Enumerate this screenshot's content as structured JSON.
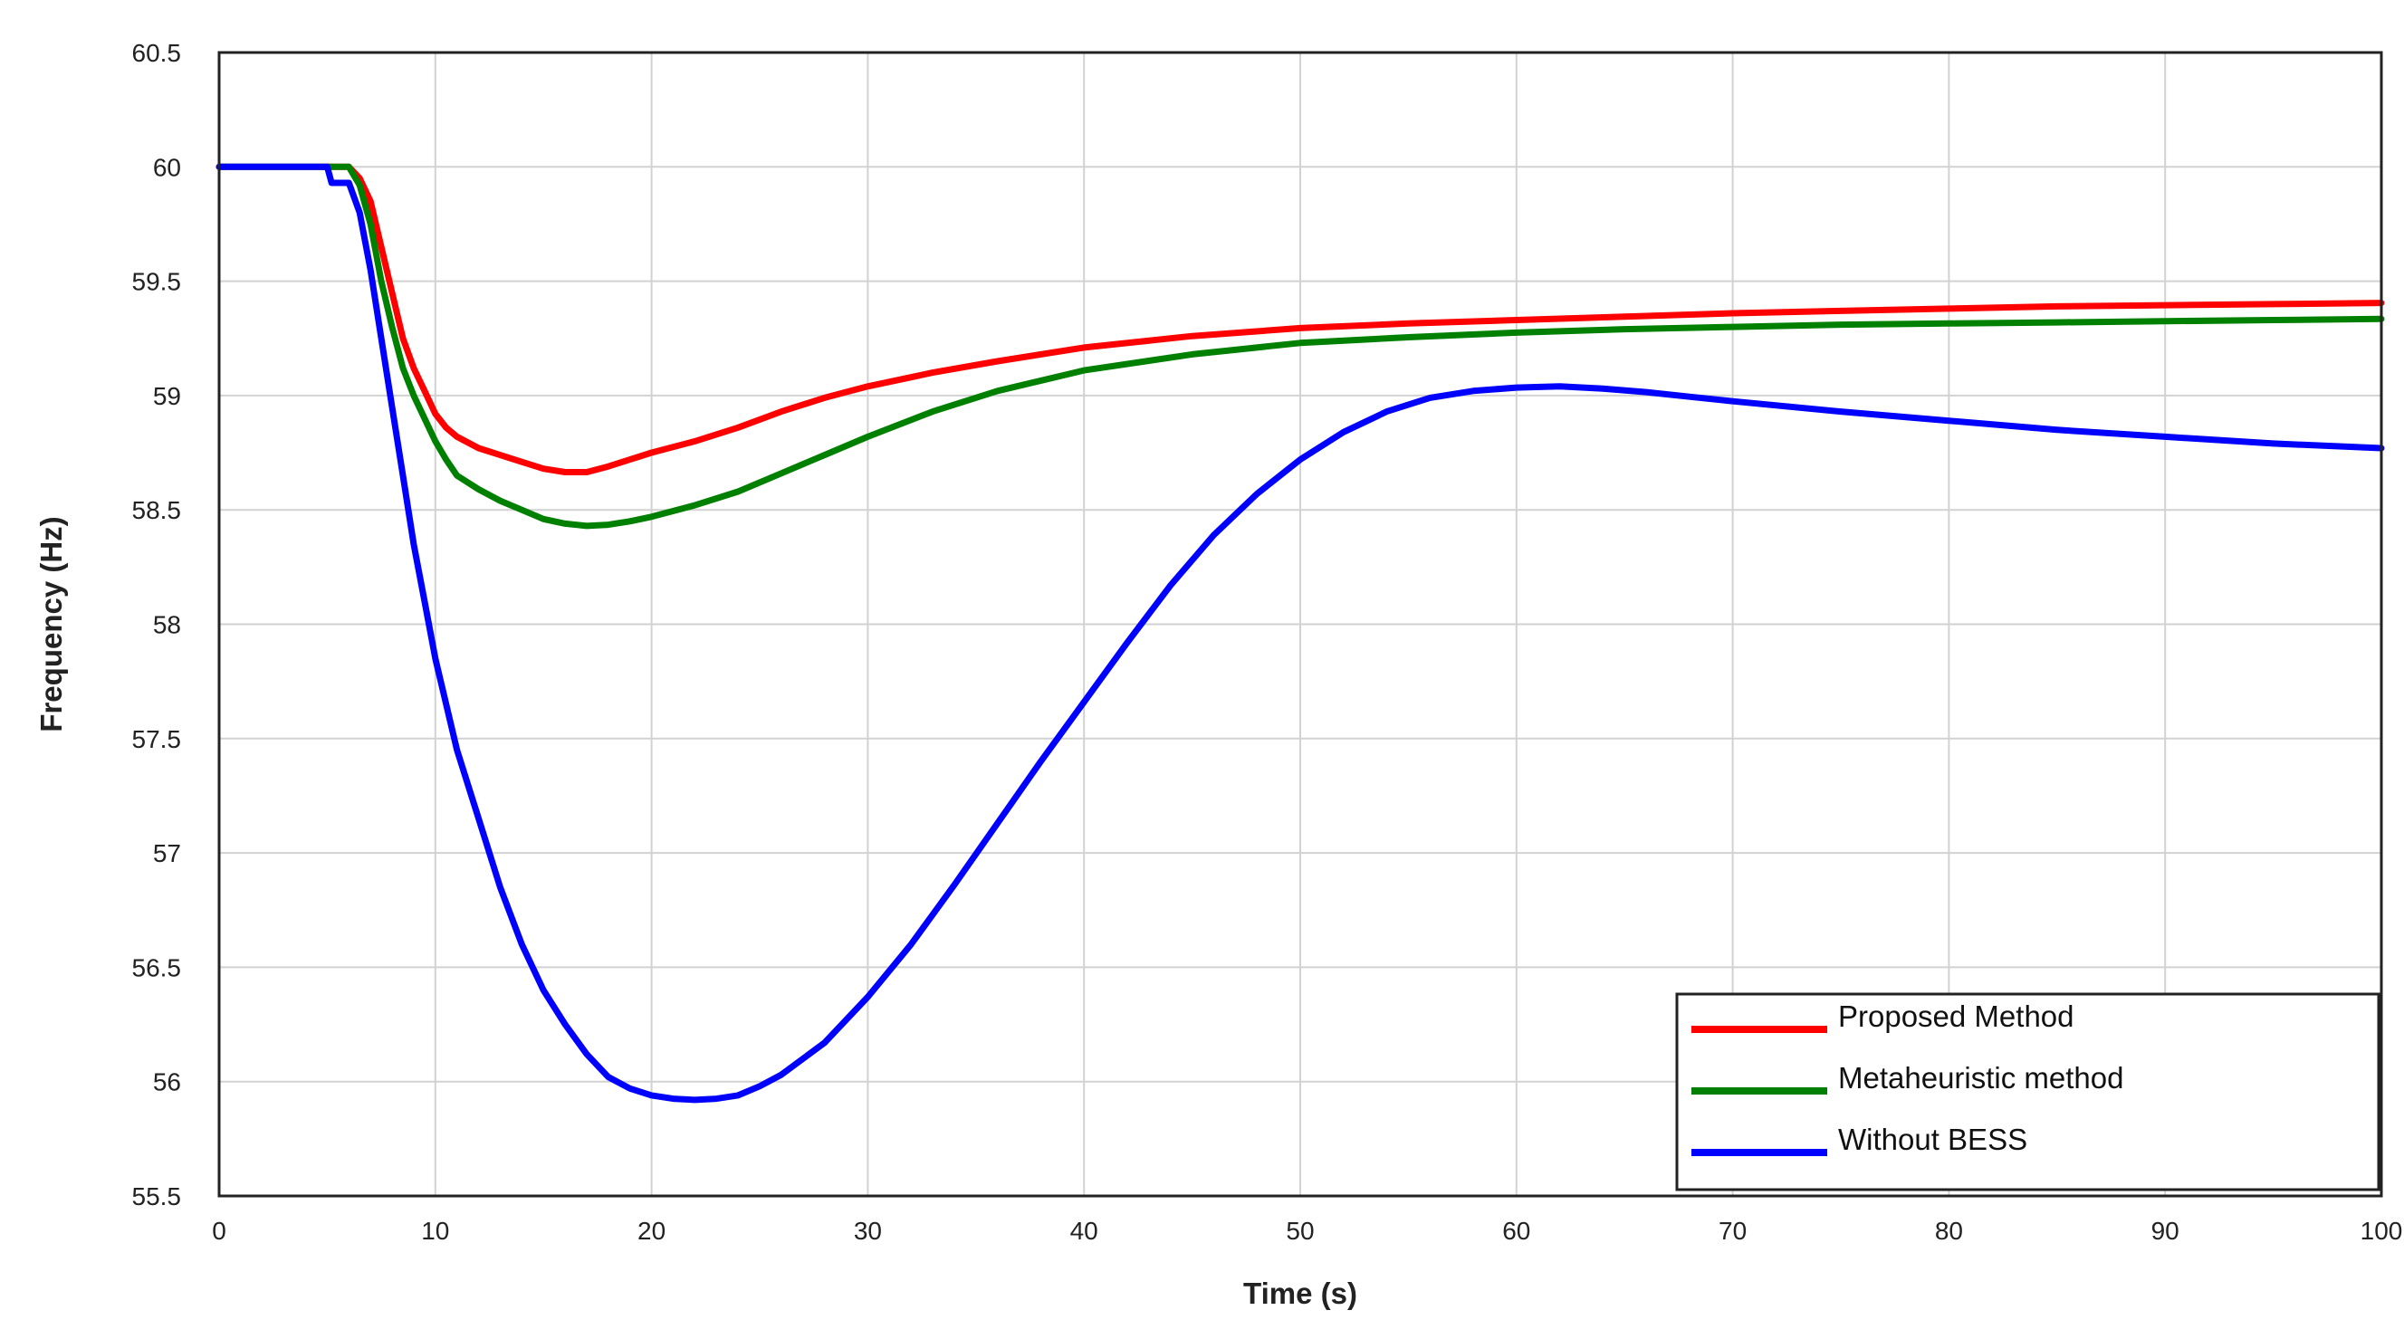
{
  "chart_data": {
    "type": "line",
    "title": "",
    "xlabel": "Time (s)",
    "ylabel": "Frequency (Hz)",
    "xlim": [
      0,
      100
    ],
    "ylim": [
      55.5,
      60.5
    ],
    "xticks": [
      0,
      10,
      20,
      30,
      40,
      50,
      60,
      70,
      80,
      90,
      100
    ],
    "yticks": [
      55.5,
      56,
      56.5,
      57,
      57.5,
      58,
      58.5,
      59,
      59.5,
      60,
      60.5
    ],
    "grid": true,
    "legend_position": "bottom-right",
    "series": [
      {
        "name": "Proposed Method",
        "color": "#ff0000",
        "points": [
          [
            0,
            60
          ],
          [
            5,
            60
          ],
          [
            6,
            60
          ],
          [
            6.5,
            59.95
          ],
          [
            7,
            59.85
          ],
          [
            7.5,
            59.65
          ],
          [
            8,
            59.45
          ],
          [
            8.5,
            59.25
          ],
          [
            9,
            59.12
          ],
          [
            9.5,
            59.02
          ],
          [
            10,
            58.92
          ],
          [
            10.5,
            58.86
          ],
          [
            11,
            58.82
          ],
          [
            12,
            58.77
          ],
          [
            13,
            58.74
          ],
          [
            14,
            58.71
          ],
          [
            15,
            58.68
          ],
          [
            16,
            58.665
          ],
          [
            17,
            58.665
          ],
          [
            18,
            58.69
          ],
          [
            19,
            58.72
          ],
          [
            20,
            58.75
          ],
          [
            22,
            58.8
          ],
          [
            24,
            58.86
          ],
          [
            26,
            58.93
          ],
          [
            28,
            58.99
          ],
          [
            30,
            59.04
          ],
          [
            33,
            59.1
          ],
          [
            36,
            59.15
          ],
          [
            40,
            59.21
          ],
          [
            45,
            59.26
          ],
          [
            50,
            59.295
          ],
          [
            55,
            59.315
          ],
          [
            60,
            59.33
          ],
          [
            65,
            59.345
          ],
          [
            70,
            59.36
          ],
          [
            75,
            59.37
          ],
          [
            80,
            59.38
          ],
          [
            85,
            59.39
          ],
          [
            90,
            59.395
          ],
          [
            95,
            59.4
          ],
          [
            100,
            59.405
          ]
        ]
      },
      {
        "name": "Metaheuristic method",
        "color": "#008000",
        "points": [
          [
            0,
            60
          ],
          [
            5,
            60
          ],
          [
            6,
            60
          ],
          [
            6.5,
            59.92
          ],
          [
            7,
            59.75
          ],
          [
            7.5,
            59.5
          ],
          [
            8,
            59.3
          ],
          [
            8.5,
            59.12
          ],
          [
            9,
            59.0
          ],
          [
            9.5,
            58.9
          ],
          [
            10,
            58.8
          ],
          [
            10.5,
            58.72
          ],
          [
            11,
            58.65
          ],
          [
            12,
            58.59
          ],
          [
            13,
            58.54
          ],
          [
            14,
            58.5
          ],
          [
            15,
            58.46
          ],
          [
            16,
            58.44
          ],
          [
            17,
            58.43
          ],
          [
            18,
            58.435
          ],
          [
            19,
            58.45
          ],
          [
            20,
            58.47
          ],
          [
            22,
            58.52
          ],
          [
            24,
            58.58
          ],
          [
            26,
            58.66
          ],
          [
            28,
            58.74
          ],
          [
            30,
            58.82
          ],
          [
            33,
            58.93
          ],
          [
            36,
            59.02
          ],
          [
            40,
            59.11
          ],
          [
            45,
            59.18
          ],
          [
            50,
            59.23
          ],
          [
            55,
            59.255
          ],
          [
            60,
            59.275
          ],
          [
            65,
            59.29
          ],
          [
            70,
            59.3
          ],
          [
            75,
            59.31
          ],
          [
            80,
            59.315
          ],
          [
            85,
            59.32
          ],
          [
            90,
            59.325
          ],
          [
            95,
            59.33
          ],
          [
            100,
            59.335
          ]
        ]
      },
      {
        "name": "Without BESS",
        "color": "#0000ff",
        "points": [
          [
            0,
            60
          ],
          [
            5,
            60
          ],
          [
            5.2,
            59.93
          ],
          [
            6,
            59.93
          ],
          [
            6.5,
            59.8
          ],
          [
            7,
            59.55
          ],
          [
            7.5,
            59.25
          ],
          [
            8,
            58.95
          ],
          [
            8.5,
            58.65
          ],
          [
            9,
            58.35
          ],
          [
            9.5,
            58.1
          ],
          [
            10,
            57.85
          ],
          [
            11,
            57.45
          ],
          [
            12,
            57.15
          ],
          [
            13,
            56.85
          ],
          [
            14,
            56.6
          ],
          [
            15,
            56.4
          ],
          [
            16,
            56.25
          ],
          [
            17,
            56.12
          ],
          [
            18,
            56.02
          ],
          [
            19,
            55.97
          ],
          [
            20,
            55.94
          ],
          [
            21,
            55.925
          ],
          [
            22,
            55.92
          ],
          [
            23,
            55.925
          ],
          [
            24,
            55.94
          ],
          [
            25,
            55.98
          ],
          [
            26,
            56.03
          ],
          [
            28,
            56.17
          ],
          [
            30,
            56.37
          ],
          [
            32,
            56.6
          ],
          [
            34,
            56.86
          ],
          [
            36,
            57.13
          ],
          [
            38,
            57.4
          ],
          [
            40,
            57.66
          ],
          [
            42,
            57.92
          ],
          [
            44,
            58.17
          ],
          [
            46,
            58.39
          ],
          [
            48,
            58.57
          ],
          [
            50,
            58.72
          ],
          [
            52,
            58.84
          ],
          [
            54,
            58.93
          ],
          [
            56,
            58.99
          ],
          [
            58,
            59.02
          ],
          [
            60,
            59.035
          ],
          [
            62,
            59.04
          ],
          [
            64,
            59.03
          ],
          [
            66,
            59.015
          ],
          [
            68,
            58.995
          ],
          [
            70,
            58.975
          ],
          [
            75,
            58.93
          ],
          [
            80,
            58.89
          ],
          [
            85,
            58.85
          ],
          [
            90,
            58.82
          ],
          [
            95,
            58.79
          ],
          [
            100,
            58.77
          ]
        ]
      }
    ]
  }
}
